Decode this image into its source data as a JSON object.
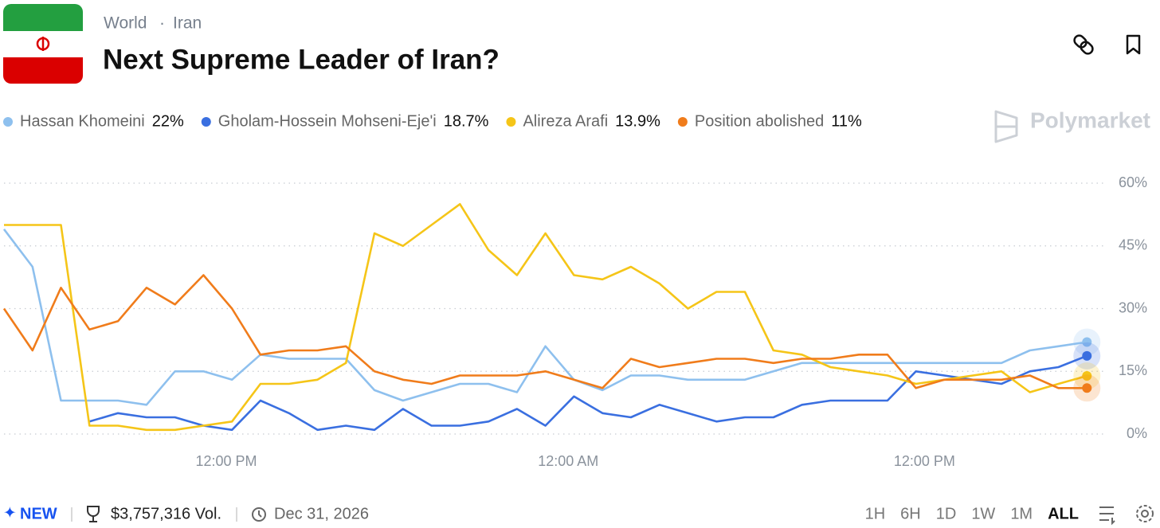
{
  "header": {
    "breadcrumb": [
      "World",
      "·",
      "Iran"
    ],
    "title": "Next Supreme Leader of Iran?"
  },
  "brand": "Polymarket",
  "chart_data": {
    "type": "line",
    "x": [
      0,
      1,
      2,
      3,
      4,
      5,
      6,
      7,
      8,
      9,
      10,
      11,
      12,
      13,
      14,
      15,
      16,
      17,
      18,
      19,
      20,
      21,
      22,
      23,
      24,
      25,
      26,
      27,
      28,
      29,
      30,
      31,
      32,
      33,
      34,
      35,
      36,
      37,
      38
    ],
    "xlim": [
      0,
      38.3
    ],
    "xticks": [
      {
        "value": 7.8,
        "label": "12:00 PM"
      },
      {
        "value": 19.8,
        "label": "12:00 AM"
      },
      {
        "value": 32.3,
        "label": "12:00 PM"
      }
    ],
    "ylim": [
      0,
      60
    ],
    "yticks": [
      {
        "value": 0,
        "label": "0%"
      },
      {
        "value": 15,
        "label": "15%"
      },
      {
        "value": 30,
        "label": "30%"
      },
      {
        "value": 45,
        "label": "45%"
      },
      {
        "value": 60,
        "label": "60%"
      }
    ],
    "grid": true,
    "series": [
      {
        "name": "Hassan Khomeini",
        "color": "#8ec0ee",
        "current": {
          "value": 22,
          "label": "22%"
        },
        "values": [
          49,
          40,
          8,
          8,
          8,
          7,
          15,
          15,
          13,
          19,
          18,
          18,
          18,
          10.5,
          8,
          10,
          12,
          12,
          10,
          21,
          13,
          10.5,
          14,
          14,
          13,
          13,
          13,
          15,
          17,
          17,
          17,
          17,
          17,
          17,
          17,
          17,
          20,
          21,
          22
        ]
      },
      {
        "name": "Gholam-Hossein Mohseni-Eje'i",
        "color": "#3a6fe0",
        "current": {
          "value": 18.7,
          "label": "18.7%"
        },
        "values": [
          null,
          null,
          null,
          3,
          5,
          4,
          4,
          2,
          1,
          8,
          5,
          1,
          2,
          1,
          6,
          2,
          2,
          3,
          6,
          2,
          9,
          5,
          4,
          7,
          5,
          3,
          4,
          4,
          7,
          8,
          8,
          8,
          15,
          14,
          13,
          12,
          15,
          16,
          18.7
        ]
      },
      {
        "name": "Alireza Arafi",
        "color": "#f5c518",
        "current": {
          "value": 13.9,
          "label": "13.9%"
        },
        "values": [
          50,
          50,
          50,
          2,
          2,
          1,
          1,
          2,
          3,
          12,
          12,
          13,
          17,
          48,
          45,
          50,
          55,
          44,
          38,
          48,
          38,
          37,
          40,
          36,
          30,
          34,
          34,
          20,
          19,
          16,
          15,
          14,
          12,
          13,
          14,
          15,
          10,
          12,
          13.9
        ]
      },
      {
        "name": "Position abolished",
        "color": "#f07c1b",
        "current": {
          "value": 11,
          "label": "11%"
        },
        "values": [
          30,
          20,
          35,
          25,
          27,
          35,
          31,
          38,
          30,
          19,
          20,
          20,
          21,
          15,
          13,
          12,
          14,
          14,
          14,
          15,
          13,
          11,
          18,
          16,
          17,
          18,
          18,
          17,
          18,
          18,
          19,
          19,
          11,
          13,
          13,
          13,
          14,
          11,
          11
        ]
      }
    ]
  },
  "footer": {
    "badge": "NEW",
    "volume": "$3,757,316 Vol.",
    "end_date": "Dec 31, 2026",
    "ranges": [
      "1H",
      "6H",
      "1D",
      "1W",
      "1M",
      "ALL"
    ],
    "active_range": "ALL"
  }
}
